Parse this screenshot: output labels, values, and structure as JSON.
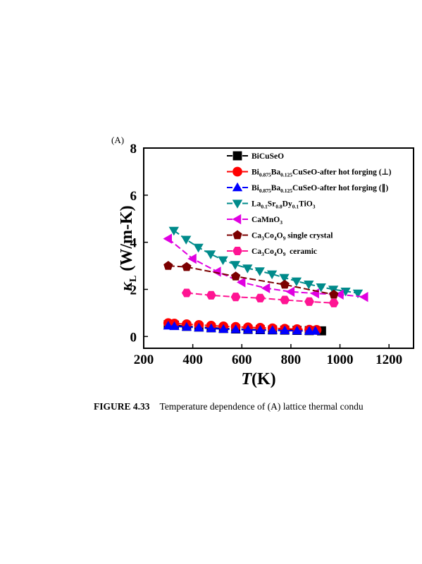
{
  "panel_label": "(A)",
  "caption": {
    "label": "FIGURE 4.33",
    "text": "Temperature dependence of (A) lattice thermal condu"
  },
  "chart_data": {
    "type": "line",
    "xlabel": "T(K)",
    "ylabel": "κL (W/m-K)",
    "xlim": [
      200,
      1300
    ],
    "ylim": [
      -0.5,
      8
    ],
    "xticks": [
      200,
      400,
      600,
      800,
      1000,
      1200
    ],
    "yticks": [
      0,
      2,
      4,
      6,
      8
    ],
    "grid": false,
    "legend_position": "top-right",
    "series": [
      {
        "name": "BiCuSeO",
        "name_parts": [
          [
            "BiCuSeO",
            ""
          ]
        ],
        "color": "#000000",
        "marker": "square",
        "x": [
          300,
          325,
          375,
          425,
          475,
          525,
          575,
          625,
          675,
          725,
          775,
          825,
          875,
          925
        ],
        "y": [
          0.5,
          0.48,
          0.43,
          0.4,
          0.37,
          0.34,
          0.32,
          0.3,
          0.29,
          0.28,
          0.27,
          0.26,
          0.25,
          0.24
        ]
      },
      {
        "name": "Bi0.875Ba0.125CuSeO-after hot forging (⊥)",
        "name_parts": [
          [
            "Bi",
            ""
          ],
          [
            "0.875",
            "sub"
          ],
          [
            "Ba",
            ""
          ],
          [
            "0.125",
            "sub"
          ],
          [
            "CuSeO-after hot forging (⊥)",
            ""
          ]
        ],
        "color": "#ff0000",
        "marker": "circle",
        "x": [
          300,
          325,
          375,
          425,
          475,
          525,
          575,
          625,
          675,
          725,
          775,
          825,
          875,
          905
        ],
        "y": [
          0.57,
          0.55,
          0.52,
          0.49,
          0.46,
          0.43,
          0.41,
          0.39,
          0.37,
          0.35,
          0.33,
          0.31,
          0.29,
          0.28
        ]
      },
      {
        "name": "Bi0.875Ba0.125CuSeO-after hot forging (∥)",
        "name_parts": [
          [
            "Bi",
            ""
          ],
          [
            "0.875",
            "sub"
          ],
          [
            "Ba",
            ""
          ],
          [
            "0.125",
            "sub"
          ],
          [
            "CuSeO-after hot forging (∥)",
            ""
          ]
        ],
        "color": "#0000ff",
        "marker": "triangle-up",
        "x": [
          300,
          325,
          375,
          425,
          475,
          525,
          575,
          625,
          675,
          725,
          775,
          825,
          875,
          900
        ],
        "y": [
          0.45,
          0.43,
          0.4,
          0.37,
          0.34,
          0.31,
          0.3,
          0.28,
          0.27,
          0.26,
          0.25,
          0.24,
          0.23,
          0.23
        ]
      },
      {
        "name": "La0.1Sr0.8Dy0.1TiO3",
        "name_parts": [
          [
            "La",
            ""
          ],
          [
            "0.1",
            "sub"
          ],
          [
            "Sr",
            ""
          ],
          [
            "0.8",
            "sub"
          ],
          [
            "Dy",
            ""
          ],
          [
            "0.1",
            "sub"
          ],
          [
            "TiO",
            ""
          ],
          [
            "3",
            "sub"
          ]
        ],
        "color": "#008b8b",
        "marker": "triangle-down",
        "x": [
          323,
          373,
          423,
          473,
          523,
          573,
          623,
          673,
          723,
          773,
          823,
          873,
          923,
          973,
          1023,
          1073
        ],
        "y": [
          4.5,
          4.12,
          3.78,
          3.5,
          3.25,
          3.05,
          2.9,
          2.78,
          2.65,
          2.5,
          2.35,
          2.22,
          2.1,
          2.0,
          1.92,
          1.84
        ]
      },
      {
        "name": "CaMnO3",
        "name_parts": [
          [
            "CaMnO",
            ""
          ],
          [
            "3",
            "sub"
          ]
        ],
        "color": "#e000e0",
        "marker": "triangle-left",
        "x": [
          300,
          400,
          500,
          600,
          700,
          800,
          900,
          1000,
          1100
        ],
        "y": [
          4.15,
          3.3,
          2.75,
          2.3,
          2.05,
          1.9,
          1.83,
          1.78,
          1.68
        ]
      },
      {
        "name": "Ca3Co4O9 single crystal",
        "name_parts": [
          [
            "Ca",
            ""
          ],
          [
            "3",
            "sub"
          ],
          [
            "Co",
            ""
          ],
          [
            "4",
            "sub"
          ],
          [
            "O",
            ""
          ],
          [
            "9",
            "sub"
          ],
          [
            " single crystal",
            ""
          ]
        ],
        "color": "#7b0000",
        "marker": "pentagon",
        "x": [
          300,
          375,
          575,
          775,
          975
        ],
        "y": [
          3.0,
          2.95,
          2.55,
          2.2,
          1.78
        ]
      },
      {
        "name": "Ca3Co4O9 ceramic",
        "name_parts": [
          [
            "Ca",
            ""
          ],
          [
            "3",
            "sub"
          ],
          [
            "Co",
            ""
          ],
          [
            "4",
            "sub"
          ],
          [
            "O",
            ""
          ],
          [
            "9",
            "sub"
          ],
          [
            "  ceramic",
            ""
          ]
        ],
        "color": "#ff1493",
        "marker": "hexagon",
        "x": [
          375,
          475,
          575,
          675,
          775,
          875,
          975
        ],
        "y": [
          1.85,
          1.75,
          1.68,
          1.63,
          1.55,
          1.48,
          1.42
        ]
      }
    ]
  }
}
